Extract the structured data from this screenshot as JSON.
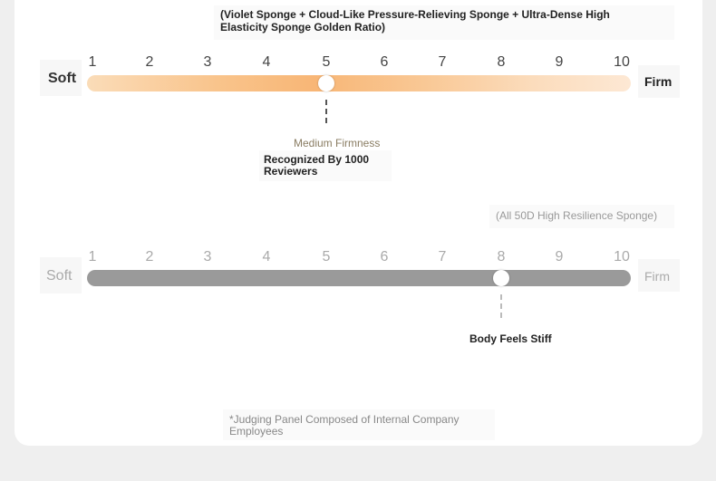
{
  "top_note": "(Violet Sponge + Cloud-Like Pressure-Relieving Sponge + Ultra-Dense High Elasticity Sponge Golden Ratio)",
  "scale1": {
    "soft_label": "Soft",
    "firm_label": "Firm",
    "numbers": [
      "1",
      "2",
      "3",
      "4",
      "5",
      "6",
      "7",
      "8",
      "9",
      "10"
    ],
    "value": 5,
    "rating_label": "Medium Firmness",
    "caption": "Recognized By 1000 Reviewers",
    "accent_color": "#f8b676"
  },
  "scale2": {
    "header_note": "(All 50D High Resilience Sponge)",
    "soft_label": "Soft",
    "firm_label": "Firm",
    "numbers": [
      "1",
      "2",
      "3",
      "4",
      "5",
      "6",
      "7",
      "8",
      "9",
      "10"
    ],
    "value": 8,
    "caption": "Body Feels Stiff",
    "track_color": "#9a9a9a"
  },
  "footnote": "*Judging Panel Composed of Internal Company Employees"
}
